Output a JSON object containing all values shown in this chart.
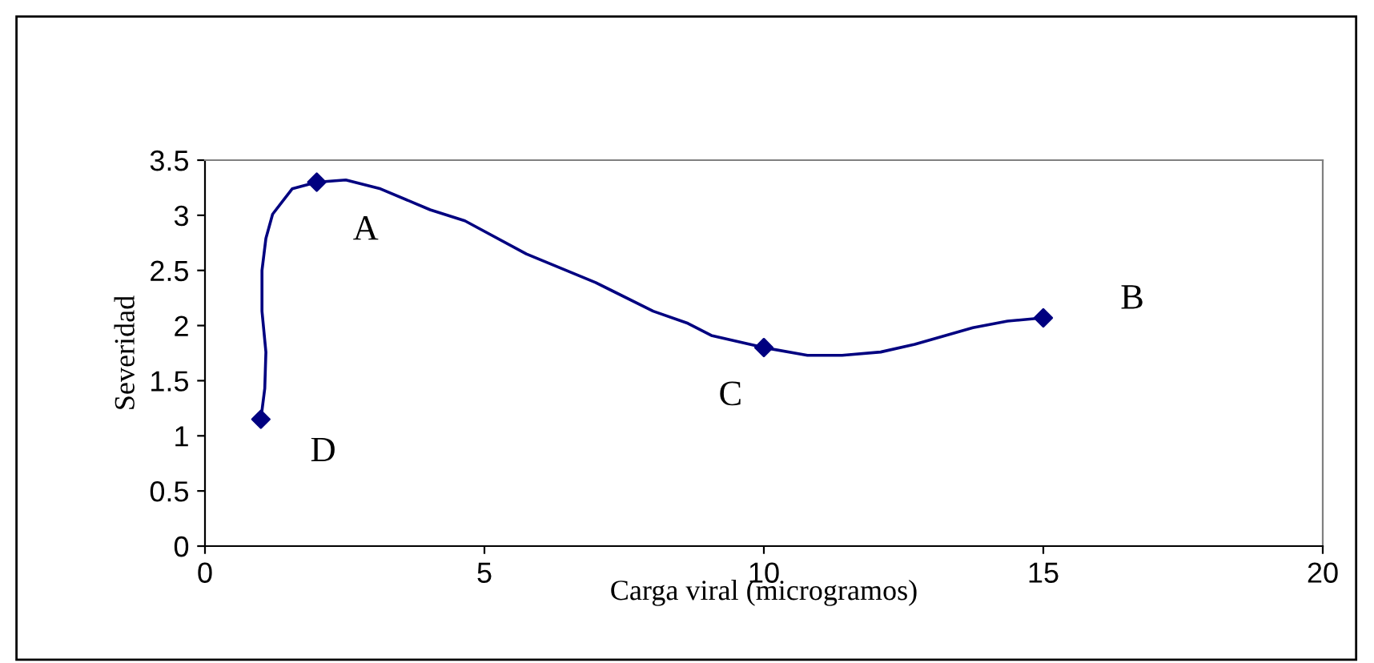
{
  "chart_data": {
    "type": "line",
    "xlabel": "Carga viral (microgramos)",
    "ylabel": "Severidad",
    "series": [
      {
        "marker": "none",
        "color": "#000080",
        "x": [
          1,
          1.07,
          1.09,
          1.02,
          1.02,
          1.09,
          1.21,
          1.56,
          2,
          2.52,
          3.14,
          4.03,
          4.65,
          5.75,
          6.99,
          8.02,
          8.64,
          9.06,
          10,
          10.78,
          11.4,
          12.09,
          12.7,
          13.74,
          14.36,
          15
        ],
        "values": [
          1.15,
          1.43,
          1.76,
          2.13,
          2.5,
          2.79,
          3.01,
          3.24,
          3.3,
          3.32,
          3.24,
          3.05,
          2.95,
          2.65,
          2.39,
          2.13,
          2.02,
          1.91,
          1.8,
          1.73,
          1.73,
          1.76,
          1.83,
          1.98,
          2.04,
          2.07
        ]
      },
      {
        "type": "scatter",
        "marker": "diamond",
        "color": "#000080",
        "x": [
          1,
          2,
          10,
          15
        ],
        "values": [
          1.15,
          3.3,
          1.8,
          2.07
        ]
      }
    ],
    "line_style": "solid",
    "grid": false,
    "legend": false,
    "xlim": [
      0,
      20
    ],
    "xticks": [
      0,
      5,
      10,
      15,
      20
    ],
    "ylim": [
      0,
      3.5
    ],
    "yticks": [
      0,
      0.5,
      1,
      1.5,
      2,
      2.5,
      3,
      3.5
    ],
    "annotations": [
      {
        "text": "D",
        "x": 1,
        "y": 1.15
      },
      {
        "text": "A",
        "x": 2,
        "y": 3.3
      },
      {
        "text": "C",
        "x": 10,
        "y": 1.8
      },
      {
        "text": "B",
        "x": 15,
        "y": 2.07
      }
    ]
  }
}
